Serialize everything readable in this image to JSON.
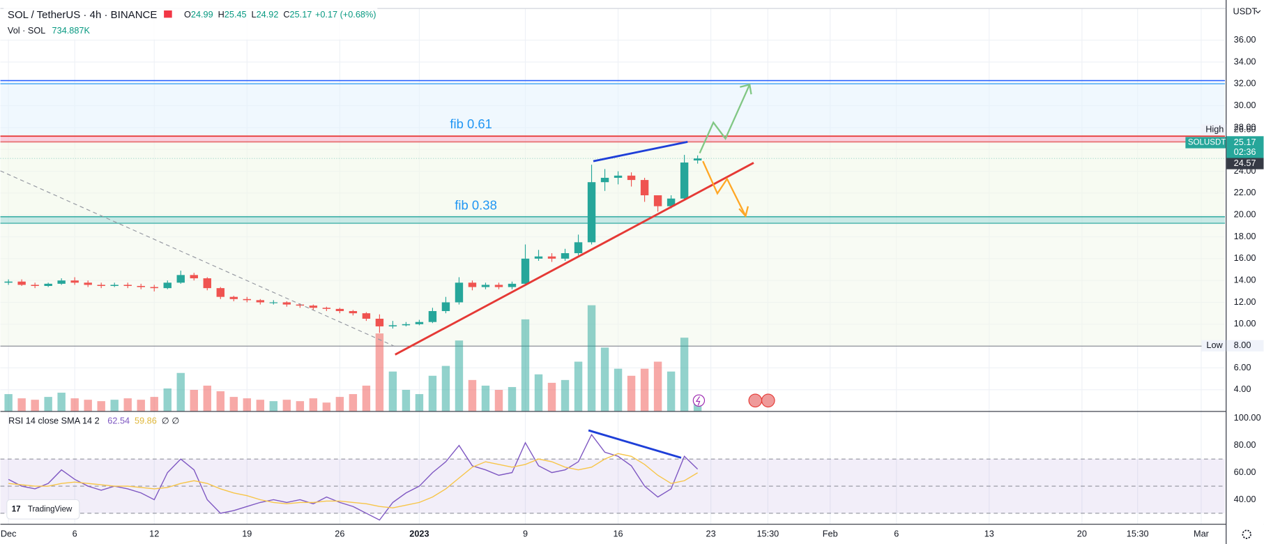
{
  "chart_data": [
    {
      "type": "candlestick",
      "title": "SOL / TetherUS · 4h · BINANCE",
      "ohlc": [
        {
          "name": "O",
          "value": 24.99
        },
        {
          "name": "H",
          "value": 25.45
        },
        {
          "name": "L",
          "value": 24.92
        },
        {
          "name": "C",
          "value": 25.17
        }
      ],
      "change": {
        "value": 0.17,
        "label": "+0.17"
      },
      "change_percent": {
        "value": 0.68,
        "label": "(+0.68%)"
      },
      "currency": "USDT",
      "up_color": "#26a69a",
      "down_color": "#ef5350",
      "x": [
        0,
        1,
        2,
        3,
        4,
        5,
        6,
        7,
        8,
        9,
        10,
        11,
        12,
        13,
        14,
        15,
        16,
        17,
        18,
        19,
        20,
        21,
        22,
        23,
        24,
        25,
        26,
        27,
        28,
        29,
        30,
        31,
        32,
        33,
        34,
        35,
        36,
        37,
        38,
        39,
        40,
        41,
        42,
        43,
        44,
        45,
        46,
        47,
        48,
        49,
        50,
        51,
        52
      ],
      "open": [
        13.8,
        13.9,
        13.6,
        13.5,
        13.7,
        14.0,
        13.8,
        13.6,
        13.5,
        13.6,
        13.5,
        13.4,
        13.3,
        13.8,
        14.5,
        14.2,
        13.3,
        12.5,
        12.3,
        12.2,
        12.0,
        12.0,
        11.8,
        11.7,
        11.5,
        11.4,
        11.2,
        11.0,
        10.5,
        9.8,
        9.9,
        10.0,
        10.2,
        11.2,
        12.0,
        13.8,
        13.4,
        13.6,
        13.4,
        13.7,
        16.0,
        16.2,
        16.0,
        16.5,
        17.5,
        23.0,
        23.4,
        23.6,
        23.2,
        21.8,
        20.8,
        21.5,
        24.99
      ],
      "high": [
        14.1,
        14.1,
        13.8,
        13.8,
        14.2,
        14.3,
        14.0,
        13.8,
        13.8,
        13.8,
        13.7,
        13.6,
        14.0,
        14.9,
        14.7,
        14.3,
        13.4,
        12.6,
        12.5,
        12.3,
        12.2,
        12.1,
        11.9,
        11.8,
        11.6,
        11.5,
        11.3,
        11.1,
        10.9,
        10.3,
        10.2,
        10.4,
        11.5,
        12.5,
        14.3,
        14.0,
        13.8,
        13.8,
        13.9,
        17.3,
        16.8,
        16.5,
        16.9,
        18.2,
        24.6,
        24.2,
        24.0,
        23.9,
        23.4,
        21.6,
        21.8,
        25.5,
        25.45
      ],
      "low": [
        13.6,
        13.5,
        13.3,
        13.4,
        13.6,
        13.6,
        13.4,
        13.3,
        13.4,
        13.3,
        13.2,
        13.0,
        13.2,
        13.7,
        14.0,
        13.1,
        12.3,
        12.1,
        12.0,
        11.8,
        11.8,
        11.6,
        11.5,
        11.3,
        11.2,
        11.0,
        10.8,
        10.3,
        9.2,
        9.6,
        9.8,
        9.9,
        10.1,
        11.0,
        11.8,
        13.1,
        13.2,
        13.2,
        13.2,
        13.5,
        15.8,
        15.7,
        15.8,
        16.3,
        17.3,
        22.2,
        22.8,
        22.6,
        21.2,
        20.3,
        20.6,
        21.3,
        24.7
      ],
      "close": [
        13.9,
        13.6,
        13.5,
        13.7,
        14.0,
        13.8,
        13.6,
        13.5,
        13.6,
        13.5,
        13.4,
        13.3,
        13.8,
        14.5,
        14.2,
        13.3,
        12.5,
        12.3,
        12.2,
        12.0,
        12.0,
        11.8,
        11.7,
        11.5,
        11.4,
        11.2,
        11.0,
        10.5,
        9.8,
        9.9,
        10.0,
        10.2,
        11.2,
        12.0,
        13.8,
        13.4,
        13.6,
        13.4,
        13.7,
        16.0,
        16.2,
        16.0,
        16.5,
        17.5,
        23.0,
        23.4,
        23.6,
        23.2,
        21.8,
        20.8,
        21.5,
        24.8,
        25.17
      ],
      "volume": {
        "name": "Vol · SOL",
        "current": {
          "value": 734887,
          "label": "734.887K"
        },
        "ylim": [
          0,
          8000000
        ],
        "values": [
          1200000,
          900000,
          800000,
          1000000,
          1300000,
          900000,
          800000,
          700000,
          800000,
          900000,
          800000,
          1000000,
          1600000,
          2700000,
          1500000,
          1800000,
          1400000,
          1000000,
          900000,
          800000,
          700000,
          800000,
          700000,
          900000,
          600000,
          1000000,
          1200000,
          1800000,
          5500000,
          2800000,
          1500000,
          1200000,
          2500000,
          3200000,
          5000000,
          2200000,
          1800000,
          1500000,
          1700000,
          6500000,
          2600000,
          2000000,
          2200000,
          3500000,
          7500000,
          4500000,
          3000000,
          2500000,
          3000000,
          3500000,
          2800000,
          5200000,
          734887
        ]
      },
      "xlim": [
        -0.61,
        91.79
      ],
      "xticks": [
        {
          "value": 0,
          "label": "Dec"
        },
        {
          "value": 5,
          "label": "6"
        },
        {
          "value": 11,
          "label": "12"
        },
        {
          "value": 18,
          "label": "19"
        },
        {
          "value": 25,
          "label": "26"
        },
        {
          "value": 31,
          "label": "2023"
        },
        {
          "value": 39,
          "label": "9"
        },
        {
          "value": 46,
          "label": "16"
        },
        {
          "value": 53,
          "label": "23"
        },
        {
          "value": 57.3,
          "label": "15:30"
        },
        {
          "value": 62,
          "label": "Feb"
        },
        {
          "value": 67,
          "label": "6"
        },
        {
          "value": 74,
          "label": "13"
        },
        {
          "value": 81,
          "label": "20"
        },
        {
          "value": 85.2,
          "label": "15:30"
        },
        {
          "value": 90,
          "label": "Mar"
        }
      ],
      "ylim": [
        2.05,
        38.94
      ],
      "yticks": [
        {
          "value": 4,
          "label": "4.00"
        },
        {
          "value": 6,
          "label": "6.00"
        },
        {
          "value": 8,
          "label": "8.00"
        },
        {
          "value": 10,
          "label": "10.00"
        },
        {
          "value": 12,
          "label": "12.00"
        },
        {
          "value": 14,
          "label": "14.00"
        },
        {
          "value": 16,
          "label": "16.00"
        },
        {
          "value": 18,
          "label": "18.00"
        },
        {
          "value": 20,
          "label": "20.00"
        },
        {
          "value": 22,
          "label": "22.00"
        },
        {
          "value": 24,
          "label": "24.00"
        },
        {
          "value": 26,
          "label": "26.00"
        },
        {
          "value": 28,
          "label": "28.00"
        },
        {
          "value": 30,
          "label": "30.00"
        },
        {
          "value": 32,
          "label": "32.00"
        },
        {
          "value": 34,
          "label": "34.00"
        },
        {
          "value": 36,
          "label": "36.00"
        }
      ],
      "grid": true,
      "price_labels": [
        {
          "name": "High",
          "value": 26.6,
          "label": "26.60"
        },
        {
          "name": "SOLUSDT",
          "value": 25.17,
          "countdown": "02:36"
        },
        {
          "value": 24.57
        },
        {
          "name": "Low",
          "value": 8,
          "label": "8.00"
        }
      ],
      "annotations": [
        "fib 0.61",
        "fib 0.38"
      ],
      "logo": "TradingView"
    },
    {
      "type": "line",
      "title": "RSI 14 close SMA 14 2",
      "legend_values": [
        62.54,
        59.86
      ],
      "legend_extra": "∅ ∅",
      "x": [
        0,
        1,
        2,
        3,
        4,
        5,
        6,
        7,
        8,
        9,
        10,
        11,
        12,
        13,
        14,
        15,
        16,
        17,
        18,
        19,
        20,
        21,
        22,
        23,
        24,
        25,
        26,
        27,
        28,
        29,
        30,
        31,
        32,
        33,
        34,
        35,
        36,
        37,
        38,
        39,
        40,
        41,
        42,
        43,
        44,
        45,
        46,
        47,
        48,
        49,
        50,
        51,
        52
      ],
      "series": [
        {
          "color": "#7e57c2",
          "values": [
            55,
            50,
            48,
            52,
            62,
            55,
            50,
            47,
            50,
            48,
            45,
            40,
            60,
            70,
            62,
            40,
            30,
            32,
            35,
            38,
            40,
            38,
            40,
            37,
            42,
            38,
            35,
            30,
            25,
            38,
            45,
            50,
            60,
            68,
            80,
            65,
            62,
            58,
            60,
            82,
            65,
            60,
            62,
            68,
            88,
            75,
            72,
            65,
            50,
            42,
            48,
            72,
            62.54
          ]
        },
        {
          "color": "#f7c548",
          "values": [
            52,
            51,
            50,
            50,
            52,
            53,
            52,
            51,
            50,
            50,
            49,
            48,
            49,
            52,
            54,
            52,
            48,
            45,
            43,
            40,
            38,
            37,
            38,
            38,
            39,
            39,
            38,
            37,
            35,
            34,
            36,
            38,
            42,
            48,
            56,
            64,
            68,
            66,
            64,
            66,
            70,
            68,
            64,
            62,
            64,
            70,
            74,
            72,
            66,
            58,
            52,
            54,
            59.86
          ]
        }
      ],
      "xlim": [
        -0.61,
        91.79
      ],
      "ylim": [
        22.2,
        104.2
      ],
      "yticks": [
        {
          "value": 40,
          "label": "40.00"
        },
        {
          "value": 60,
          "label": "60.00"
        },
        {
          "value": 80,
          "label": "80.00"
        },
        {
          "value": 100,
          "label": "100.00"
        }
      ],
      "levels": [
        30,
        50,
        70
      ],
      "band_color": "#7e57c2"
    }
  ]
}
